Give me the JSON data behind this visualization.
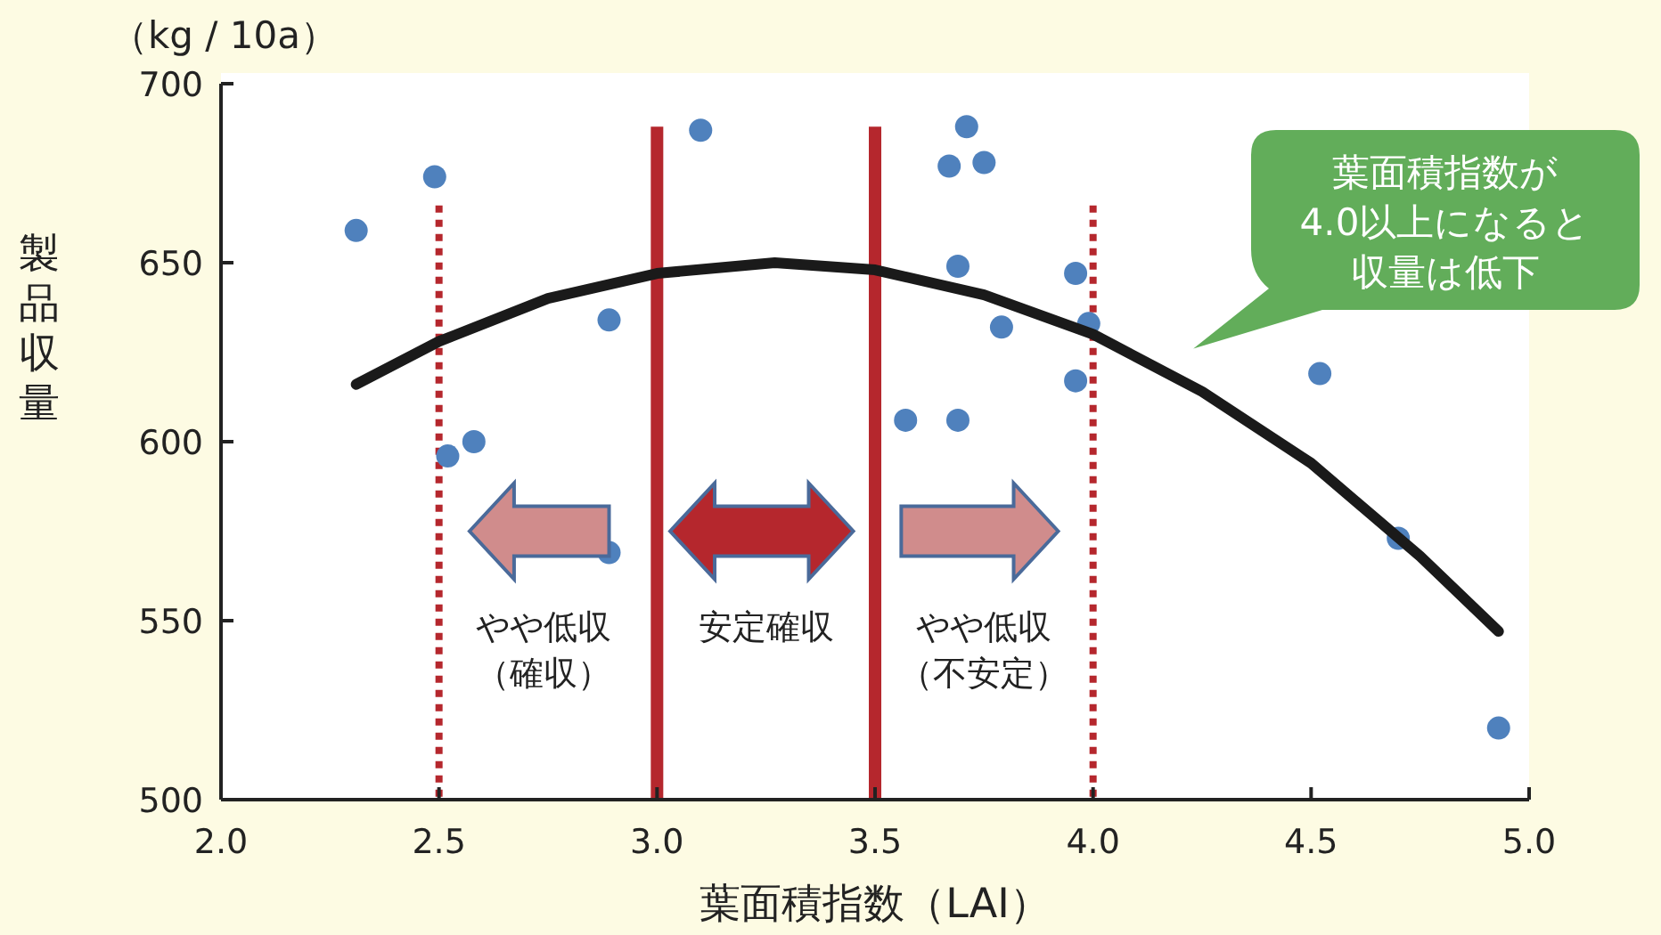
{
  "chart_data": {
    "type": "scatter",
    "xlabel": "葉面積指数（LAI）",
    "ylabel": "製品収量",
    "xlim": [
      2.0,
      5.0
    ],
    "xticks": [
      {
        "value": 2.0,
        "label": "2.0"
      },
      {
        "value": 2.5,
        "label": "2.5"
      },
      {
        "value": 3.0,
        "label": "3.0"
      },
      {
        "value": 3.5,
        "label": "3.5"
      },
      {
        "value": 4.0,
        "label": "4.0"
      },
      {
        "value": 4.5,
        "label": "4.5"
      },
      {
        "value": 5.0,
        "label": "5.0"
      }
    ],
    "ylim": [
      500,
      700
    ],
    "yticks": [
      500,
      550,
      600,
      650,
      700
    ],
    "grid": false,
    "marker": "circle",
    "series": [
      {
        "color": "#4f81bd",
        "x": [
          2.31,
          2.49,
          2.52,
          2.58,
          2.89,
          2.89,
          3.1,
          3.57,
          3.67,
          3.71,
          3.75,
          3.69,
          3.69,
          3.79,
          3.96,
          3.99,
          3.96,
          4.52,
          4.7,
          4.93
        ],
        "values": [
          659,
          674,
          596,
          600,
          569,
          634,
          687,
          606,
          677,
          688,
          678,
          649,
          606,
          632,
          647,
          633,
          617,
          619,
          573,
          520
        ]
      },
      {
        "type": "line",
        "color": "#1a1a1a",
        "marker": "none",
        "line_style": "solid",
        "x": [
          2.31,
          2.5,
          2.75,
          3.0,
          3.27,
          3.5,
          3.75,
          4.0,
          4.25,
          4.5,
          4.75,
          4.93
        ],
        "values": [
          616,
          628,
          640,
          647,
          650,
          648,
          641,
          630,
          614,
          594,
          568,
          547
        ]
      }
    ],
    "ref_lines": [
      {
        "axis": "x",
        "value": 2.5,
        "color": "#b5272d",
        "line_style": "dotted"
      },
      {
        "axis": "x",
        "value": 3.0,
        "color": "#b5272d",
        "line_style": "solid"
      },
      {
        "axis": "x",
        "value": 3.5,
        "color": "#b5272d",
        "line_style": "solid"
      },
      {
        "axis": "x",
        "value": 4.0,
        "color": "#b5272d",
        "line_style": "dotted"
      }
    ],
    "annotations": [
      "（kg / 10a）",
      "やや低収",
      "（確収）",
      "安定確収",
      "やや低収",
      "（不安定）",
      "葉面積指数が",
      "4.0以上になると",
      "収量は低下"
    ]
  }
}
